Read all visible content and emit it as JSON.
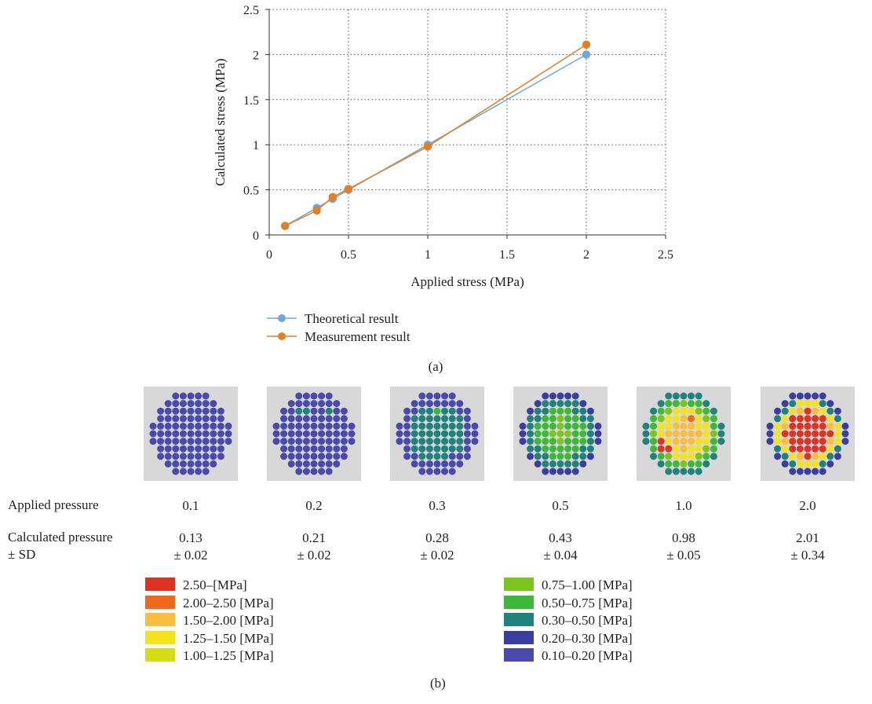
{
  "chart_data": [
    {
      "type": "line",
      "panel_label": "(a)",
      "xlabel": "Applied stress (MPa)",
      "ylabel": "Calculated stress (MPa)",
      "xlim": [
        0,
        2.5
      ],
      "ylim": [
        0,
        2.5
      ],
      "x_ticks": [
        "0",
        "0.5",
        "1",
        "1.5",
        "2",
        "2.5"
      ],
      "y_ticks": [
        "0",
        "0.5",
        "1",
        "1.5",
        "2",
        "2.5"
      ],
      "grid": true,
      "legend_position": "bottom",
      "series": [
        {
          "name": "Theoretical result",
          "color": "#6fa8dc",
          "x": [
            0.1,
            0.3,
            0.4,
            0.5,
            1.0,
            2.0
          ],
          "y": [
            0.1,
            0.3,
            0.4,
            0.5,
            1.0,
            2.0
          ]
        },
        {
          "name": "Measurement result",
          "color": "#e67e22",
          "x": [
            0.1,
            0.3,
            0.4,
            0.5,
            1.0,
            2.0
          ],
          "y": [
            0.1,
            0.27,
            0.42,
            0.51,
            0.98,
            2.11
          ]
        }
      ]
    },
    {
      "type": "heatmap",
      "panel_label": "(b)",
      "row_labels": {
        "applied": "Applied pressure",
        "calculated": "Calculated pressure",
        "sd": "± SD"
      },
      "columns": [
        {
          "applied": "0.1",
          "calculated": "0.13",
          "sd": "± 0.02"
        },
        {
          "applied": "0.2",
          "calculated": "0.21",
          "sd": "± 0.02"
        },
        {
          "applied": "0.3",
          "calculated": "0.28",
          "sd": "± 0.02"
        },
        {
          "applied": "0.5",
          "calculated": "0.43",
          "sd": "± 0.04"
        },
        {
          "applied": "1.0",
          "calculated": "0.98",
          "sd": "± 0.05"
        },
        {
          "applied": "2.0",
          "calculated": "2.01",
          "sd": "± 0.34"
        }
      ],
      "color_scale": [
        {
          "label": "2.50–[MPa]",
          "color": "#e03222"
        },
        {
          "label": "2.00–2.50 [MPa]",
          "color": "#ee6a1a"
        },
        {
          "label": "1.50–2.00 [MPa]",
          "color": "#fbbd3e"
        },
        {
          "label": "1.25–1.50 [MPa]",
          "color": "#f4e21c"
        },
        {
          "label": "1.00–1.25 [MPa]",
          "color": "#d4dc12"
        },
        {
          "label": "0.75–1.00 [MPa]",
          "color": "#7cc41e"
        },
        {
          "label": "0.50–0.75 [MPa]",
          "color": "#3db83a"
        },
        {
          "label": "0.30–0.50 [MPa]",
          "color": "#20827c"
        },
        {
          "label": "0.20–0.30 [MPa]",
          "color": "#3a3ea0"
        },
        {
          "label": "0.10–0.20 [MPa]",
          "color": "#4a4aac"
        }
      ]
    }
  ]
}
